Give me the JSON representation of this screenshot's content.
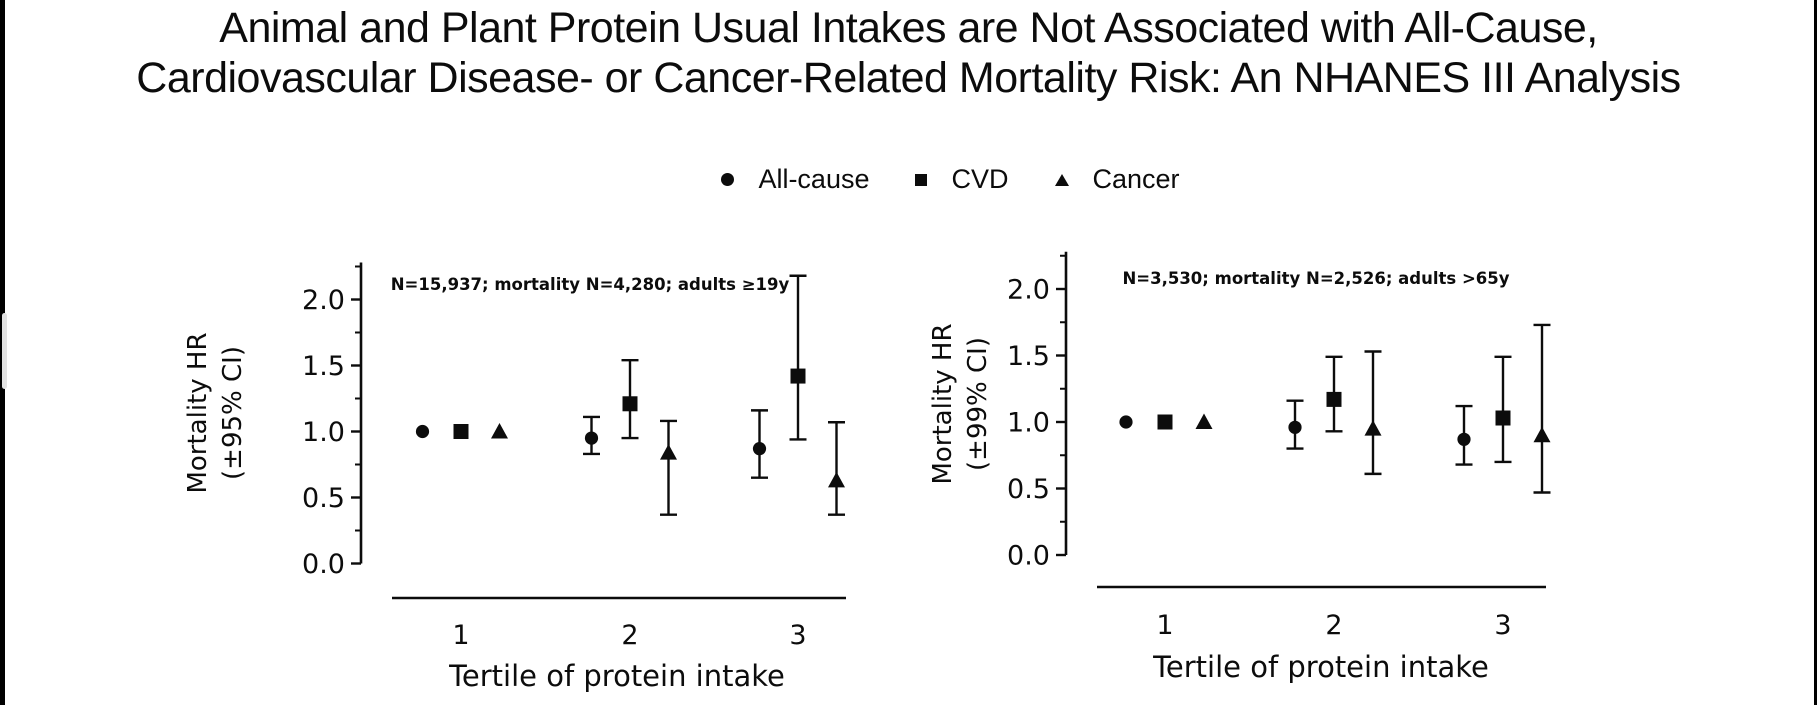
{
  "window": {
    "background": "#ffffff",
    "left_edge_bar_color": "#000000",
    "right_edge_bar_color": "#000000",
    "scrollbar_thumb_color": "#e2e2e2",
    "ink_color": "#0c0c0c"
  },
  "title": {
    "line1": "Animal and Plant Protein Usual Intakes are Not Associated with All-Cause,",
    "line2": "Cardiovascular Disease- or Cancer-Related Mortality Risk: An NHANES III Analysis"
  },
  "legend": {
    "items": [
      {
        "label": "All-cause",
        "marker": "circle"
      },
      {
        "label": "CVD",
        "marker": "square"
      },
      {
        "label": "Cancer",
        "marker": "triangle"
      }
    ]
  },
  "chart_data": [
    {
      "type": "scatter",
      "panel": "left",
      "annotation": "N=15,937; mortality N=4,280; adults ≥19y",
      "ylabel_line1": "Mortality HR",
      "ylabel_line2": "(±95% CI)",
      "xlabel": "Tertile of protein intake",
      "x_ticks": [
        "1",
        "2",
        "3"
      ],
      "y_tick_labels": [
        "0.0",
        "0.5",
        "1.0",
        "1.5",
        "2.0"
      ],
      "y_tick_values": [
        0.0,
        0.5,
        1.0,
        1.5,
        2.0
      ],
      "ylim": [
        0.0,
        2.28
      ],
      "grid": false,
      "categories": [
        1,
        2,
        3
      ],
      "series": [
        {
          "name": "All-cause",
          "marker": "circle",
          "hr": [
            1.0,
            0.95,
            0.87
          ],
          "ci_low": [
            null,
            0.83,
            0.65
          ],
          "ci_high": [
            null,
            1.11,
            1.16
          ]
        },
        {
          "name": "CVD",
          "marker": "square",
          "hr": [
            1.0,
            1.21,
            1.42
          ],
          "ci_low": [
            null,
            0.95,
            0.94
          ],
          "ci_high": [
            null,
            1.54,
            2.18
          ]
        },
        {
          "name": "Cancer",
          "marker": "triangle",
          "hr": [
            1.0,
            0.84,
            0.63
          ],
          "ci_low": [
            null,
            0.37,
            0.37
          ],
          "ci_high": [
            null,
            1.08,
            1.07
          ]
        }
      ]
    },
    {
      "type": "scatter",
      "panel": "right",
      "annotation": "N=3,530; mortality N=2,526; adults >65y",
      "ylabel_line1": "Mortality HR",
      "ylabel_line2": "(±99% CI)",
      "xlabel": "Tertile of protein intake",
      "x_ticks": [
        "1",
        "2",
        "3"
      ],
      "y_tick_labels": [
        "0.0",
        "0.5",
        "1.0",
        "1.5",
        "2.0"
      ],
      "y_tick_values": [
        0.0,
        0.5,
        1.0,
        1.5,
        2.0
      ],
      "ylim": [
        0.0,
        2.28
      ],
      "grid": false,
      "categories": [
        1,
        2,
        3
      ],
      "series": [
        {
          "name": "All-cause",
          "marker": "circle",
          "hr": [
            1.0,
            0.96,
            0.87
          ],
          "ci_low": [
            null,
            0.8,
            0.68
          ],
          "ci_high": [
            null,
            1.16,
            1.12
          ]
        },
        {
          "name": "CVD",
          "marker": "square",
          "hr": [
            1.0,
            1.17,
            1.03
          ],
          "ci_low": [
            null,
            0.93,
            0.7
          ],
          "ci_high": [
            null,
            1.49,
            1.49
          ]
        },
        {
          "name": "Cancer",
          "marker": "triangle",
          "hr": [
            1.0,
            0.95,
            0.9
          ],
          "ci_low": [
            null,
            0.61,
            0.47
          ],
          "ci_high": [
            null,
            1.53,
            1.73
          ]
        }
      ]
    }
  ]
}
